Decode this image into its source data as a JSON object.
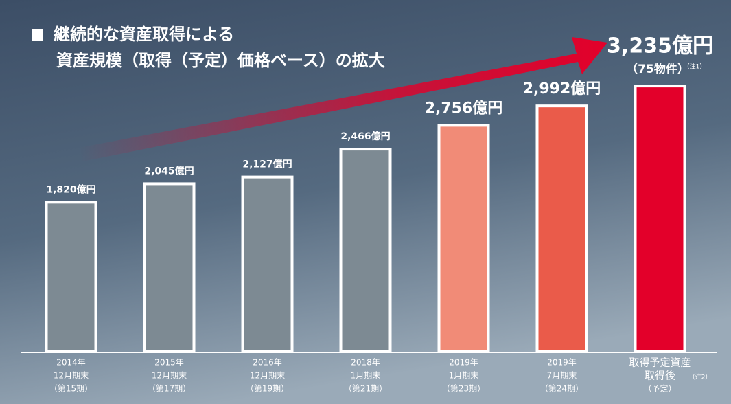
{
  "chart_data": {
    "type": "bar",
    "title": [
      "継続的な資産取得による",
      "資産規模（取得（予定）価格ベース）の拡大"
    ],
    "categories": [
      [
        "2014年",
        "12月期末",
        "（第15期）"
      ],
      [
        "2015年",
        "12月期末",
        "（第17期）"
      ],
      [
        "2016年",
        "12月期末",
        "（第19期）"
      ],
      [
        "2018年",
        "1月期末",
        "（第21期）"
      ],
      [
        "2019年",
        "1月期末",
        "（第23期）"
      ],
      [
        "2019年",
        "7月期末",
        "（第24期）"
      ],
      [
        "取得予定資産",
        "取得後",
        "（予定）"
      ]
    ],
    "values": [
      1820,
      2045,
      2127,
      2466,
      2756,
      2992,
      3235
    ],
    "value_labels": [
      "1,820億円",
      "2,045億円",
      "2,127億円",
      "2,466億円",
      "2,756億円",
      "2,992億円",
      "3,235億円"
    ],
    "colors": [
      "#7d8a93",
      "#7d8a93",
      "#7d8a93",
      "#7d8a93",
      "#f18b77",
      "#ea5b4a",
      "#e3002a"
    ],
    "annotations": {
      "count": "（75物件）",
      "note1": "（注1）",
      "note2": "（注2）"
    }
  }
}
